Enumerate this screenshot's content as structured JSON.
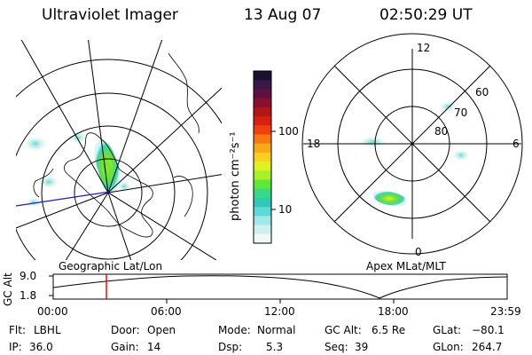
{
  "header": {
    "instrument": "Ultraviolet Imager",
    "date": "13 Aug 07",
    "time": "02:50:29 UT"
  },
  "panels": {
    "left_label": "Geographic Lat/Lon",
    "right_label": "Apex MLat/MLT"
  },
  "colorbar": {
    "label": "photon cm⁻²s⁻¹",
    "ticks": [
      "100",
      "10"
    ],
    "colors": [
      "#1a1030",
      "#3a1848",
      "#601040",
      "#8a1030",
      "#b01818",
      "#d82010",
      "#f04010",
      "#f87810",
      "#f8a818",
      "#f8d020",
      "#e0f020",
      "#a8f028",
      "#60e838",
      "#38d888",
      "#30c8b8",
      "#60d8d8",
      "#a0e8e8",
      "#d0f0f0",
      "#f0f8f8"
    ]
  },
  "polar": {
    "mlt_labels": [
      "12",
      "18",
      "6",
      "0"
    ],
    "lat_labels": [
      "60",
      "70",
      "80"
    ]
  },
  "altitude": {
    "axis_label": "GC Alt",
    "y_ticks": [
      "9.0",
      "1.8"
    ],
    "x_ticks": [
      "00:00",
      "06:00",
      "12:00",
      "18:00",
      "23:59"
    ],
    "marker_color": "#e00000"
  },
  "info": {
    "row1": [
      {
        "label": "Flt:",
        "value": "LBHL"
      },
      {
        "label": "Door:",
        "value": "Open"
      },
      {
        "label": "Mode:",
        "value": "Normal"
      },
      {
        "label": "GC Alt:",
        "value": "6.5 Re"
      },
      {
        "label": "GLat:",
        "value": "−80.1"
      }
    ],
    "row2": [
      {
        "label": "IP:",
        "value": "36.0"
      },
      {
        "label": "Gain:",
        "value": "14"
      },
      {
        "label": "Dsp:",
        "value": "5.3"
      },
      {
        "label": "Seq:",
        "value": "39"
      },
      {
        "label": "GLon:",
        "value": "264.7"
      }
    ]
  }
}
